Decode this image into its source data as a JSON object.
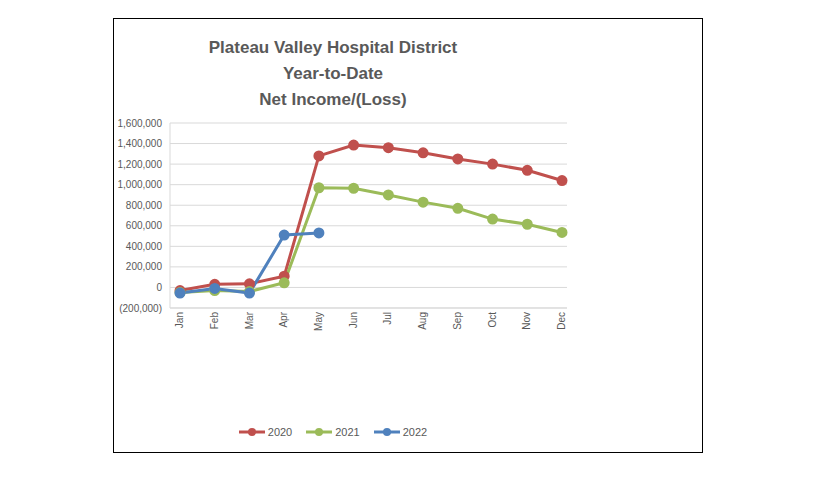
{
  "chart_data": {
    "type": "line",
    "title": [
      "Plateau Valley Hospital District",
      "Year-to-Date",
      "Net Income/(Loss)"
    ],
    "categories": [
      "Jan",
      "Feb",
      "Mar",
      "Apr",
      "May",
      "Jun",
      "Jul",
      "Aug",
      "Sep",
      "Oct",
      "Nov",
      "Dec"
    ],
    "series": [
      {
        "name": "2020",
        "color": "#c0504d",
        "marker": "circle",
        "values": [
          -30000,
          30000,
          35000,
          110000,
          1280000,
          1385000,
          1360000,
          1310000,
          1250000,
          1200000,
          1140000,
          1040000
        ]
      },
      {
        "name": "2021",
        "color": "#9bbb59",
        "marker": "circle",
        "values": [
          -50000,
          -30000,
          -40000,
          45000,
          970000,
          965000,
          900000,
          830000,
          770000,
          665000,
          615000,
          535000
        ]
      },
      {
        "name": "2022",
        "color": "#4f81bd",
        "marker": "circle",
        "values": [
          -55000,
          -10000,
          -55000,
          510000,
          530000,
          null,
          null,
          null,
          null,
          null,
          null,
          null
        ]
      }
    ],
    "ylim": [
      -200000,
      1600000
    ],
    "yticks": [
      {
        "value": -200000,
        "label": "(200,000)"
      },
      0,
      {
        "value": 200000,
        "label": "200,000"
      },
      {
        "value": 400000,
        "label": "400,000"
      },
      {
        "value": 600000,
        "label": "600,000"
      },
      {
        "value": 800000,
        "label": "800,000"
      },
      {
        "value": 1000000,
        "label": "1,000,000"
      },
      {
        "value": 1200000,
        "label": "1,200,000"
      },
      {
        "value": 1400000,
        "label": "1,400,000"
      },
      {
        "value": 1600000,
        "label": "1,600,000"
      }
    ],
    "grid": true,
    "legend": "bottom"
  }
}
